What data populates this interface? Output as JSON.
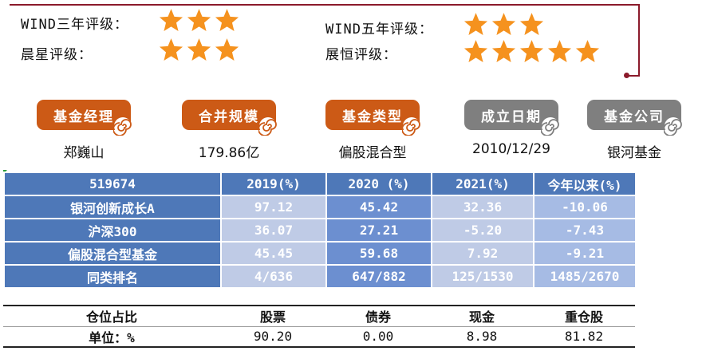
{
  "ratings": {
    "wind3": {
      "label": "WIND三年评级：",
      "stars": 3
    },
    "morningstar": {
      "label": "晨星评级：",
      "stars": 3
    },
    "wind5": {
      "label": "WIND五年评级：",
      "stars": 3
    },
    "zhanheng": {
      "label": "展恒评级：",
      "stars": 5
    },
    "star_color": "#f5921e"
  },
  "info_tags": [
    {
      "label": "基金经理",
      "value": "郑巍山",
      "color": "#cc5a16"
    },
    {
      "label": "合并规模",
      "value": "179.86亿",
      "color": "#cc5a16"
    },
    {
      "label": "基金类型",
      "value": "偏股混合型",
      "color": "#cc5a16"
    },
    {
      "label": "成立日期",
      "value": "2010/12/29",
      "color": "#7f7f7f"
    },
    {
      "label": "基金公司",
      "value": "银河基金",
      "color": "#7f7f7f"
    }
  ],
  "performance": {
    "headers": [
      "519674",
      "2019(%)",
      "2020 (%)",
      "2021(%)",
      "今年以来(%)"
    ],
    "rows": [
      [
        "银河创新成长A",
        "97.12",
        "45.42",
        "32.36",
        "-10.06"
      ],
      [
        "沪深300",
        "36.07",
        "27.21",
        "-5.20",
        "-7.43"
      ],
      [
        "偏股混合型基金",
        "45.45",
        "59.68",
        "7.92",
        "-9.21"
      ],
      [
        "同类排名",
        "4/636",
        "647/882",
        "125/1530",
        "1485/2670"
      ]
    ]
  },
  "allocation": {
    "headers": [
      "仓位占比",
      "股票",
      "债券",
      "现金",
      "重仓股"
    ],
    "values": [
      "单位：%",
      "90.20",
      "0.00",
      "8.98",
      "81.82"
    ]
  }
}
